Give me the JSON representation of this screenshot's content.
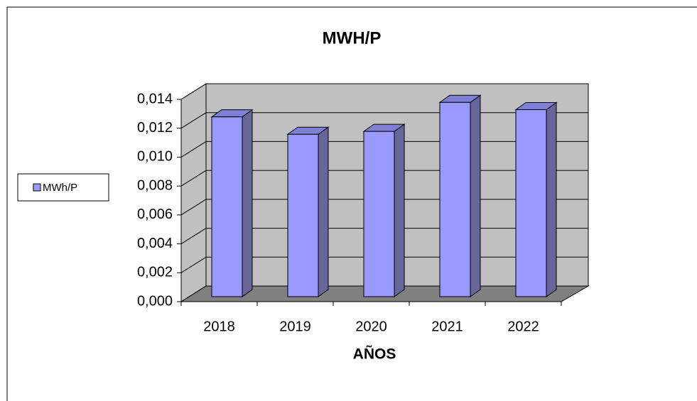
{
  "chart_data": {
    "type": "bar3d",
    "title": "MWH/P",
    "x_label": "AÑOS",
    "categories": [
      "2018",
      "2019",
      "2020",
      "2021",
      "2022"
    ],
    "series": [
      {
        "name": "MWh/P",
        "color": "#9999ff",
        "values": [
          0.0124,
          0.0112,
          0.0114,
          0.0134,
          0.0129
        ]
      }
    ],
    "ylim": [
      0,
      0.014
    ],
    "yticks": [
      {
        "value": 0,
        "label": "0,000"
      },
      {
        "value": 0.002,
        "label": "0,002"
      },
      {
        "value": 0.004,
        "label": "0,004"
      },
      {
        "value": 0.006,
        "label": "0,006"
      },
      {
        "value": 0.008,
        "label": "0,008"
      },
      {
        "value": 0.01,
        "label": "0,010"
      },
      {
        "value": 0.012,
        "label": "0,012"
      },
      {
        "value": 0.014,
        "label": "0,014"
      }
    ],
    "grid": true,
    "legend": "left"
  }
}
